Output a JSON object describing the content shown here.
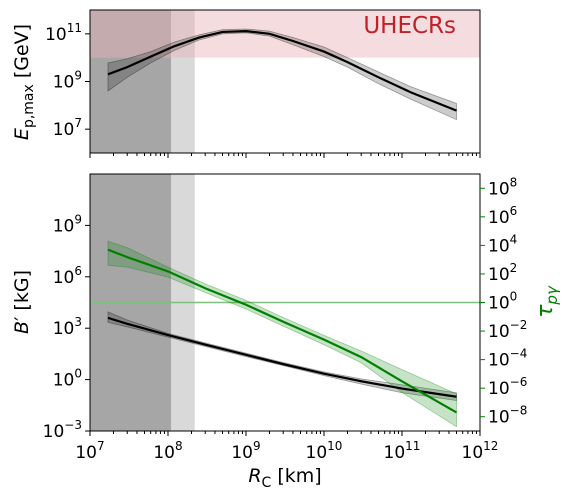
{
  "chart_data": [
    {
      "type": "line",
      "annotation": "UHECRs",
      "ylabel": "E_{p,max} [GeV]",
      "xscale": "log",
      "yscale": "log",
      "xlim": [
        10000000.0,
        1000000000000.0
      ],
      "ylim": [
        1000000.0,
        1000000000000.0
      ],
      "yticks": [
        {
          "base": "10",
          "exp": "7",
          "value": 10000000.0
        },
        {
          "base": "10",
          "exp": "9",
          "value": 1000000000.0
        },
        {
          "base": "10",
          "exp": "11",
          "value": 100000000000.0
        }
      ],
      "shaded_regions": [
        {
          "kind": "excluded-dark",
          "x": [
            10000000.0,
            110000000.0
          ]
        },
        {
          "kind": "excluded-light",
          "x": [
            110000000.0,
            220000000.0
          ]
        },
        {
          "kind": "uhecr-band",
          "y": [
            10000000000.0,
            1000000000000.0
          ],
          "color": "#e8b4b8"
        }
      ],
      "series": [
        {
          "color": "#000000",
          "x": [
            17000000.0,
            30000000.0,
            60000000.0,
            120000000.0,
            250000000.0,
            500000000.0,
            1000000000.0,
            2000000000.0,
            4000000000.0,
            10000000000.0,
            20000000000.0,
            50000000000.0,
            130000000000.0,
            500000000000.0
          ],
          "y": [
            2000000000.0,
            4000000000.0,
            11000000000.0,
            30000000000.0,
            70000000000.0,
            120000000000.0,
            130000000000.0,
            100000000000.0,
            50000000000.0,
            18000000000.0,
            6500000000.0,
            1500000000.0,
            350000000.0,
            60000000.0
          ],
          "band_low": [
            400000000.0,
            1500000000.0,
            6000000000.0,
            20000000000.0,
            55000000000.0,
            100000000000.0,
            110000000000.0,
            80000000000.0,
            35000000000.0,
            11000000000.0,
            4000000000.0,
            800000000.0,
            180000000.0,
            25000000.0
          ],
          "band_high": [
            6000000000.0,
            9000000000.0,
            18000000000.0,
            45000000000.0,
            90000000000.0,
            150000000000.0,
            160000000000.0,
            130000000000.0,
            70000000000.0,
            28000000000.0,
            10000000000.0,
            2500000000.0,
            600000000.0,
            120000000.0
          ]
        }
      ]
    },
    {
      "type": "line",
      "xlabel": "R_C [km]",
      "ylabel": "B' [kG]",
      "y2label": "τ_pγ",
      "xscale": "log",
      "yscale": "log",
      "xlim": [
        10000000.0,
        1000000000000.0
      ],
      "ylim": [
        0.001,
        1000000000000.0
      ],
      "y2lim": [
        1e-09,
        1000000000.0
      ],
      "xticks": [
        {
          "base": "10",
          "exp": "7",
          "value": 10000000.0
        },
        {
          "base": "10",
          "exp": "8",
          "value": 100000000.0
        },
        {
          "base": "10",
          "exp": "9",
          "value": 1000000000.0
        },
        {
          "base": "10",
          "exp": "10",
          "value": 10000000000.0
        },
        {
          "base": "10",
          "exp": "11",
          "value": 100000000000.0
        },
        {
          "base": "10",
          "exp": "12",
          "value": 1000000000000.0
        }
      ],
      "yticks": [
        {
          "base": "10",
          "exp": "−3",
          "value": 0.001
        },
        {
          "base": "10",
          "exp": "0",
          "value": 1
        },
        {
          "base": "10",
          "exp": "3",
          "value": 1000.0
        },
        {
          "base": "10",
          "exp": "6",
          "value": 1000000.0
        },
        {
          "base": "10",
          "exp": "9",
          "value": 1000000000.0
        }
      ],
      "y2ticks": [
        {
          "base": "10",
          "exp": "−8",
          "value": 1e-08
        },
        {
          "base": "10",
          "exp": "−6",
          "value": 1e-06
        },
        {
          "base": "10",
          "exp": "−4",
          "value": 0.0001
        },
        {
          "base": "10",
          "exp": "−2",
          "value": 0.01
        },
        {
          "base": "10",
          "exp": "0",
          "value": 1
        },
        {
          "base": "10",
          "exp": "2",
          "value": 100.0
        },
        {
          "base": "10",
          "exp": "4",
          "value": 10000.0
        },
        {
          "base": "10",
          "exp": "6",
          "value": 1000000.0
        },
        {
          "base": "10",
          "exp": "8",
          "value": 100000000.0
        }
      ],
      "reference_line": {
        "axis": "y2",
        "value": 1,
        "color": "#7fbf7f"
      },
      "shaded_regions": [
        {
          "kind": "excluded-dark",
          "x": [
            10000000.0,
            110000000.0
          ]
        },
        {
          "kind": "excluded-light",
          "x": [
            110000000.0,
            220000000.0
          ]
        }
      ],
      "series": [
        {
          "axis": "y",
          "color": "#000000",
          "x": [
            17000000.0,
            30000000.0,
            100000000.0,
            300000000.0,
            1000000000.0,
            3000000000.0,
            10000000000.0,
            30000000000.0,
            100000000000.0,
            500000000000.0
          ],
          "y": [
            4000,
            1800,
            400,
            110,
            28,
            8,
            2.2,
            0.8,
            0.3,
            0.1
          ],
          "band_low": [
            2200,
            1200,
            300,
            85,
            22,
            6.5,
            1.7,
            0.55,
            0.17,
            0.06
          ],
          "band_high": [
            9000,
            3000,
            500,
            140,
            35,
            10,
            2.8,
            1.1,
            0.5,
            0.17
          ]
        },
        {
          "axis": "y2",
          "color": "#008000",
          "x": [
            17000000.0,
            30000000.0,
            100000000.0,
            300000000.0,
            1000000000.0,
            3000000000.0,
            10000000000.0,
            30000000000.0,
            100000000000.0,
            500000000000.0
          ],
          "y": [
            5000,
            1500,
            150,
            10,
            0.7,
            0.045,
            0.0025,
            0.00015,
            3e-06,
            2e-08
          ],
          "band_low": [
            400,
            300,
            60,
            5,
            0.35,
            0.022,
            0.0011,
            6e-05,
            5e-07,
            2e-09
          ],
          "band_high": [
            20000,
            7000,
            300,
            20,
            1.4,
            0.09,
            0.005,
            0.0004,
            2e-05,
            4e-07
          ]
        }
      ]
    }
  ]
}
